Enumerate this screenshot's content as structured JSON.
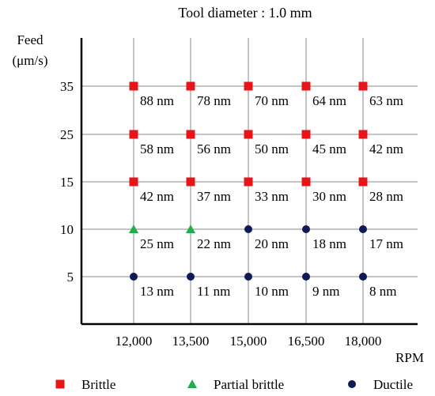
{
  "chart_data": {
    "type": "scatter",
    "title": "Tool diameter : 1.0 mm",
    "xlabel": "RPM",
    "ylabel_line1": "Feed",
    "ylabel_line2": "(μm/s)",
    "x_ticks": [
      "12,000",
      "13,500",
      "15,000",
      "16,500",
      "18,000"
    ],
    "y_ticks": [
      "35",
      "25",
      "15",
      "10",
      "5"
    ],
    "grid": true,
    "legend_position": "bottom",
    "legend": [
      {
        "key": "brittle",
        "label": "Brittle",
        "shape": "square",
        "color": "#e8141a"
      },
      {
        "key": "partial",
        "label": "Partial brittle",
        "shape": "triangle",
        "color": "#1fae4b"
      },
      {
        "key": "ductile",
        "label": "Ductile",
        "shape": "circle",
        "color": "#0e1a57"
      }
    ],
    "points": [
      {
        "rpm": "12,000",
        "feed": "35",
        "mode": "brittle",
        "label": "88 nm"
      },
      {
        "rpm": "13,500",
        "feed": "35",
        "mode": "brittle",
        "label": "78 nm"
      },
      {
        "rpm": "15,000",
        "feed": "35",
        "mode": "brittle",
        "label": "70 nm"
      },
      {
        "rpm": "16,500",
        "feed": "35",
        "mode": "brittle",
        "label": "64 nm"
      },
      {
        "rpm": "18,000",
        "feed": "35",
        "mode": "brittle",
        "label": "63 nm"
      },
      {
        "rpm": "12,000",
        "feed": "25",
        "mode": "brittle",
        "label": "58 nm"
      },
      {
        "rpm": "13,500",
        "feed": "25",
        "mode": "brittle",
        "label": "56 nm"
      },
      {
        "rpm": "15,000",
        "feed": "25",
        "mode": "brittle",
        "label": "50 nm"
      },
      {
        "rpm": "16,500",
        "feed": "25",
        "mode": "brittle",
        "label": "45 nm"
      },
      {
        "rpm": "18,000",
        "feed": "25",
        "mode": "brittle",
        "label": "42 nm"
      },
      {
        "rpm": "12,000",
        "feed": "15",
        "mode": "brittle",
        "label": "42 nm"
      },
      {
        "rpm": "13,500",
        "feed": "15",
        "mode": "brittle",
        "label": "37 nm"
      },
      {
        "rpm": "15,000",
        "feed": "15",
        "mode": "brittle",
        "label": "33 nm"
      },
      {
        "rpm": "16,500",
        "feed": "15",
        "mode": "brittle",
        "label": "30 nm"
      },
      {
        "rpm": "18,000",
        "feed": "15",
        "mode": "brittle",
        "label": "28 nm"
      },
      {
        "rpm": "12,000",
        "feed": "10",
        "mode": "partial",
        "label": "25 nm"
      },
      {
        "rpm": "13,500",
        "feed": "10",
        "mode": "partial",
        "label": "22 nm"
      },
      {
        "rpm": "15,000",
        "feed": "10",
        "mode": "ductile",
        "label": "20 nm"
      },
      {
        "rpm": "16,500",
        "feed": "10",
        "mode": "ductile",
        "label": "18 nm"
      },
      {
        "rpm": "18,000",
        "feed": "10",
        "mode": "ductile",
        "label": "17 nm"
      },
      {
        "rpm": "12,000",
        "feed": "5",
        "mode": "ductile",
        "label": "13 nm"
      },
      {
        "rpm": "13,500",
        "feed": "5",
        "mode": "ductile",
        "label": "11 nm"
      },
      {
        "rpm": "15,000",
        "feed": "5",
        "mode": "ductile",
        "label": "10 nm"
      },
      {
        "rpm": "16,500",
        "feed": "5",
        "mode": "ductile",
        "label": "9 nm"
      },
      {
        "rpm": "18,000",
        "feed": "5",
        "mode": "ductile",
        "label": "8 nm"
      }
    ]
  }
}
